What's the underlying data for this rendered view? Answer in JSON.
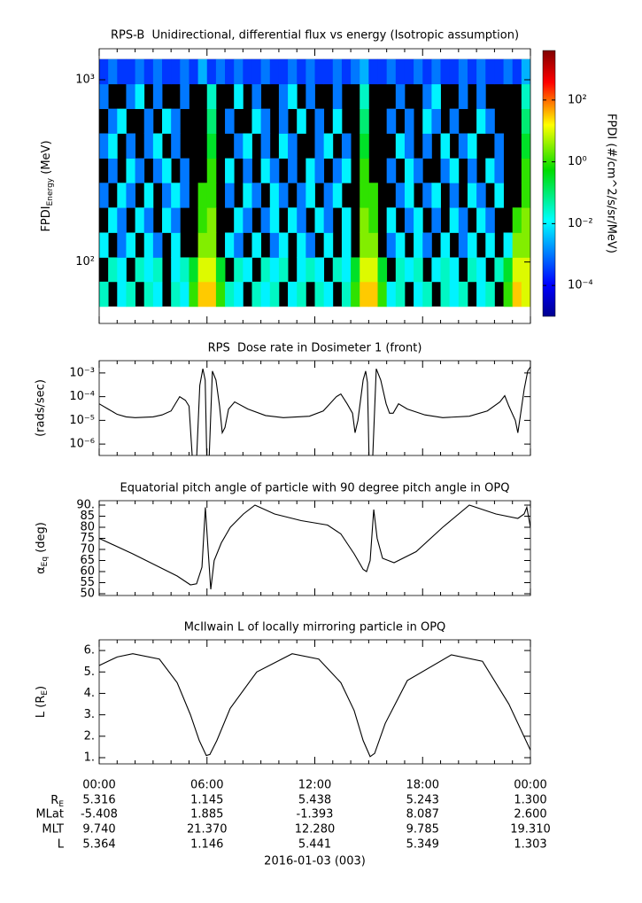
{
  "time_axis": {
    "xlim": [
      0,
      24
    ],
    "xticks": [
      {
        "value": 0,
        "label": "00:00"
      },
      {
        "value": 6,
        "label": "06:00"
      },
      {
        "value": 12,
        "label": "12:00"
      },
      {
        "value": 18,
        "label": "18:00"
      },
      {
        "value": 24,
        "label": "00:00"
      }
    ],
    "xminorticks": [
      1,
      2,
      3,
      4,
      5,
      7,
      8,
      9,
      10,
      11,
      13,
      14,
      15,
      16,
      17,
      19,
      20,
      21,
      22,
      23
    ],
    "date_label": "2016-01-03 (003)"
  },
  "chart_data": [
    {
      "type": "heatmap",
      "title": "RPS-B  Unidirectional, differential flux vs energy (Isotropic assumption)",
      "ylabel": {
        "base": "FPDI",
        "sub": "Energy",
        "after": " (MeV)"
      },
      "ylog": true,
      "ylim": [
        46,
        1480
      ],
      "yticks": [
        {
          "value": 100,
          "label": "10²"
        },
        {
          "value": 1000,
          "label": "10³"
        }
      ],
      "xbins": [
        0,
        0.5,
        1,
        1.5,
        2,
        2.5,
        3,
        3.5,
        4,
        4.5,
        5,
        5.5,
        6,
        6.5,
        7,
        7.5,
        8,
        8.5,
        9,
        9.5,
        10,
        10.5,
        11,
        11.5,
        12,
        12.5,
        13,
        13.5,
        14,
        14.5,
        15,
        15.5,
        16,
        16.5,
        17,
        17.5,
        18,
        18.5,
        19,
        19.5,
        20,
        20.5,
        21,
        21.5,
        22,
        22.5,
        23,
        23.5,
        24
      ],
      "ybins": [
        57,
        78,
        106,
        145,
        199,
        272,
        371,
        508,
        694,
        949,
        1297
      ],
      "missing_color": "#000000",
      "z": [
        [
          0.03,
          null,
          0.01,
          0.03,
          null,
          0.03,
          0.01,
          null,
          0.03,
          0.01,
          1,
          30,
          30,
          1,
          0.03,
          0.01,
          null,
          0.03,
          0.01,
          0.03,
          null,
          0.01,
          0.03,
          null,
          0.03,
          0.01,
          null,
          0.03,
          1,
          30,
          30,
          1,
          0.01,
          0.03,
          null,
          0.01,
          0.03,
          null,
          0.03,
          0.01,
          0.03,
          null,
          0.01,
          0.03,
          null,
          1,
          30,
          10
        ],
        [
          null,
          0.03,
          0.01,
          null,
          0.03,
          0.01,
          0.03,
          null,
          0.01,
          0.03,
          0.3,
          10,
          10,
          0.3,
          null,
          0.03,
          0.01,
          null,
          0.03,
          0.01,
          0.03,
          null,
          0.01,
          0.03,
          0.01,
          null,
          0.03,
          0.01,
          0.3,
          10,
          10,
          0.3,
          null,
          0.03,
          0.01,
          0.03,
          null,
          0.01,
          0.03,
          0.01,
          null,
          0.03,
          0.01,
          null,
          0.03,
          0.3,
          10,
          10
        ],
        [
          0.01,
          null,
          0.001,
          0.01,
          null,
          0.01,
          0.001,
          null,
          0.01,
          null,
          null,
          3,
          3,
          null,
          0.01,
          0.001,
          null,
          0.01,
          null,
          0.001,
          0.01,
          null,
          0.01,
          0.001,
          null,
          0.01,
          null,
          0.01,
          null,
          3,
          3,
          null,
          0.001,
          0.01,
          null,
          0.01,
          0.001,
          null,
          0.01,
          null,
          0.001,
          0.01,
          null,
          0.01,
          null,
          0.01,
          3,
          3
        ],
        [
          null,
          0.01,
          0.001,
          null,
          0.01,
          0.001,
          null,
          0.01,
          0.001,
          null,
          null,
          1,
          3,
          null,
          null,
          0.01,
          0.001,
          null,
          0.001,
          0.01,
          null,
          0.01,
          0.001,
          null,
          0.01,
          0.001,
          null,
          0.01,
          null,
          3,
          1,
          null,
          0.01,
          null,
          0.001,
          0.01,
          null,
          0.001,
          null,
          0.01,
          0.001,
          null,
          0.01,
          0.001,
          null,
          null,
          1,
          3
        ],
        [
          0.001,
          null,
          0.01,
          0.001,
          null,
          0.01,
          null,
          0.001,
          0.01,
          0.001,
          null,
          1,
          1,
          null,
          0.001,
          null,
          0.01,
          0.001,
          null,
          0.01,
          0.001,
          null,
          0.001,
          0.01,
          null,
          0.001,
          0.01,
          null,
          null,
          1,
          1,
          null,
          null,
          0.001,
          0.01,
          null,
          0.001,
          0.01,
          null,
          0.001,
          null,
          0.01,
          0.001,
          null,
          0.01,
          null,
          null,
          1
        ],
        [
          null,
          0.001,
          null,
          0.01,
          0.001,
          null,
          0.001,
          0.01,
          null,
          0.001,
          null,
          null,
          1,
          null,
          0.01,
          null,
          0.001,
          null,
          0.01,
          0.001,
          null,
          0.001,
          null,
          0.01,
          0.001,
          null,
          0.001,
          0.01,
          null,
          1,
          null,
          null,
          0.001,
          null,
          0.01,
          0.001,
          null,
          null,
          0.001,
          0.01,
          null,
          0.001,
          null,
          0.01,
          0.001,
          null,
          null,
          1
        ],
        [
          0.001,
          0.01,
          null,
          0.001,
          null,
          0.001,
          0.01,
          null,
          0.001,
          null,
          null,
          null,
          0.3,
          null,
          null,
          0.001,
          0.01,
          null,
          0.001,
          null,
          0.01,
          0.001,
          null,
          null,
          0.001,
          0.01,
          null,
          0.001,
          null,
          0.3,
          null,
          null,
          null,
          0.01,
          0.001,
          null,
          0.001,
          null,
          0.01,
          null,
          0.001,
          0.01,
          null,
          null,
          0.001,
          null,
          null,
          0.3
        ],
        [
          null,
          0.001,
          0.01,
          null,
          null,
          0.001,
          null,
          0.01,
          0.001,
          null,
          null,
          null,
          0.1,
          null,
          0.001,
          null,
          null,
          0.01,
          0.001,
          null,
          0.001,
          null,
          0.01,
          null,
          0.001,
          null,
          0.01,
          null,
          null,
          0.1,
          null,
          null,
          0.001,
          null,
          0.001,
          null,
          0.01,
          0.001,
          null,
          0.001,
          null,
          null,
          0.01,
          0.001,
          null,
          null,
          null,
          0.1
        ],
        [
          0.001,
          null,
          null,
          0.001,
          0.01,
          null,
          0.001,
          null,
          null,
          0.001,
          null,
          null,
          0.03,
          null,
          null,
          0.01,
          null,
          0.001,
          null,
          null,
          0.001,
          0.01,
          null,
          0.001,
          null,
          null,
          0.001,
          null,
          null,
          0.03,
          null,
          null,
          null,
          0.001,
          null,
          null,
          0.001,
          0.01,
          null,
          null,
          0.001,
          null,
          0.001,
          null,
          null,
          null,
          null,
          0.03
        ],
        [
          0.0003,
          0.001,
          0.0003,
          0.0003,
          0.001,
          0.0003,
          0.001,
          0.0003,
          0.0003,
          0.001,
          0.0003,
          0.003,
          0.0003,
          0.001,
          0.0003,
          0.001,
          0.0003,
          0.0003,
          0.001,
          0.0003,
          0.0003,
          0.001,
          0.0003,
          0.001,
          0.0003,
          0.0003,
          0.001,
          0.0003,
          0.001,
          0.003,
          0.0003,
          0.0003,
          0.001,
          0.0003,
          0.0003,
          0.001,
          0.0003,
          0.001,
          0.0003,
          0.0003,
          0.001,
          0.0003,
          0.001,
          0.0003,
          0.0003,
          0.001,
          0.0003,
          0.003
        ]
      ],
      "colorbar": {
        "label": "FPDI (#/cm^2/s/sr/MeV)",
        "log": true,
        "colormap": "jet",
        "zlim": [
          1e-05,
          4000
        ],
        "zticks": [
          {
            "value": 0.0001,
            "label": "10⁻⁴"
          },
          {
            "value": 0.01,
            "label": "10⁻²"
          },
          {
            "value": 1,
            "label": "10⁰"
          },
          {
            "value": 100,
            "label": "10²"
          }
        ]
      }
    },
    {
      "type": "line",
      "title": "RPS  Dose rate in Dosimeter 1 (front)",
      "ylabel": "(rads/sec)",
      "color": "#000000",
      "ylog": true,
      "ylim": [
        3.3e-07,
        0.0033
      ],
      "yticks": [
        {
          "value": 0.001,
          "label": "10⁻³"
        },
        {
          "value": 0.0001,
          "label": "10⁻⁴"
        },
        {
          "value": 1e-05,
          "label": "10⁻⁵"
        },
        {
          "value": 1e-06,
          "label": "10⁻⁶"
        }
      ],
      "x": [
        0,
        0.5,
        1,
        1.5,
        2,
        3,
        3.5,
        4,
        4.48,
        4.8,
        5.0,
        5.22,
        5.4,
        5.6,
        5.77,
        5.9,
        6.0,
        6.1,
        6.3,
        6.5,
        6.7,
        6.85,
        7.0,
        7.2,
        7.54,
        8.28,
        9.26,
        10.25,
        11.7,
        12.47,
        13.2,
        13.45,
        13.8,
        14.1,
        14.24,
        14.4,
        14.69,
        14.83,
        14.93,
        15.03,
        15.2,
        15.42,
        15.67,
        15.97,
        16.16,
        16.36,
        16.66,
        17.15,
        18.13,
        19.12,
        20.6,
        21.6,
        22.3,
        22.57,
        22.8,
        23.16,
        23.3,
        23.46,
        23.65,
        23.85,
        24
      ],
      "values": [
        5e-05,
        3e-05,
        1.8e-05,
        1.4e-05,
        1.3e-05,
        1.4e-05,
        1.7e-05,
        2.5e-05,
        0.0001,
        7e-05,
        4e-05,
        1e-07,
        1e-07,
        0.0003,
        0.0015,
        0.0005,
        1e-07,
        1e-07,
        0.0012,
        0.0005,
        4e-05,
        3e-06,
        5e-06,
        3e-05,
        6e-05,
        3e-05,
        1.6e-05,
        1.3e-05,
        1.5e-05,
        2.5e-05,
        0.0001,
        0.00013,
        5e-05,
        2e-05,
        3e-06,
        1e-05,
        0.0005,
        0.0012,
        0.0004,
        1e-07,
        1e-07,
        0.0015,
        0.0005,
        5e-05,
        2e-05,
        2e-05,
        5e-05,
        3e-05,
        1.7e-05,
        1.3e-05,
        1.5e-05,
        2.5e-05,
        6e-05,
        0.00011,
        4e-05,
        1e-05,
        3e-06,
        2e-05,
        0.0002,
        0.0012,
        0.0018
      ]
    },
    {
      "type": "line",
      "title": "Equatorial pitch angle of particle with 90 degree pitch angle in OPQ",
      "ylabel": {
        "base": "α",
        "sub": "Eq",
        "after": " (deg)"
      },
      "color": "#000000",
      "ylog": false,
      "ylim": [
        49.2,
        92
      ],
      "yticks": [
        50,
        55,
        60,
        65,
        70,
        75,
        80,
        85,
        {
          "value": 90,
          "label": "90."
        }
      ],
      "x": [
        0,
        1.87,
        4.34,
        5.08,
        5.42,
        5.72,
        5.91,
        6.06,
        6.21,
        6.4,
        6.8,
        7.3,
        8.03,
        8.67,
        9.76,
        11.24,
        12.71,
        13.45,
        14.19,
        14.69,
        14.88,
        15.08,
        15.28,
        15.47,
        15.77,
        16.41,
        17.64,
        19.12,
        20.6,
        22.08,
        23.3,
        23.65,
        23.8,
        24
      ],
      "values": [
        75,
        68,
        58,
        54,
        54.5,
        62,
        89,
        70,
        52,
        65,
        73,
        80,
        86,
        90,
        86,
        83,
        81,
        77,
        68,
        61,
        60,
        65,
        88,
        75,
        66,
        64,
        69,
        80,
        90,
        86,
        84,
        86,
        89,
        80
      ]
    },
    {
      "type": "line",
      "title": "McIlwain L of locally mirroring particle in OPQ",
      "ylabel": {
        "base": "L (R",
        "sub": "E",
        "after": ")"
      },
      "color": "#000000",
      "ylog": false,
      "ylim": [
        0.71,
        6.5
      ],
      "yticks": [
        {
          "value": 1,
          "label": "1."
        },
        {
          "value": 2,
          "label": "2."
        },
        {
          "value": 3,
          "label": "3."
        },
        {
          "value": 4,
          "label": "4."
        },
        {
          "value": 5,
          "label": "5."
        },
        {
          "value": 6,
          "label": "6."
        }
      ],
      "x": [
        0,
        1,
        1.87,
        3.35,
        4.34,
        5.08,
        5.57,
        5.96,
        6.16,
        6.55,
        7.29,
        8.77,
        10.74,
        12.22,
        13.45,
        14.19,
        14.69,
        15.08,
        15.33,
        15.92,
        17.15,
        19.6,
        21.33,
        22.8,
        24
      ],
      "values": [
        5.3,
        5.7,
        5.85,
        5.6,
        4.5,
        3.0,
        1.8,
        1.1,
        1.15,
        1.8,
        3.3,
        5.0,
        5.85,
        5.6,
        4.5,
        3.2,
        1.8,
        1.05,
        1.2,
        2.6,
        4.6,
        5.8,
        5.5,
        3.5,
        1.35
      ]
    }
  ],
  "ephemeris": {
    "rows": [
      {
        "label": {
          "base": "R",
          "sub": "E"
        },
        "values": [
          "5.316",
          "1.145",
          "5.438",
          "5.243",
          "1.300"
        ]
      },
      {
        "label": "MLat",
        "values": [
          "-5.408",
          "1.885",
          "-1.393",
          "8.087",
          "2.600"
        ]
      },
      {
        "label": "MLT",
        "values": [
          "9.740",
          "21.370",
          "12.280",
          "9.785",
          "19.310"
        ]
      },
      {
        "label": "L",
        "values": [
          "5.364",
          "1.146",
          "5.441",
          "5.349",
          "1.303"
        ]
      }
    ]
  }
}
